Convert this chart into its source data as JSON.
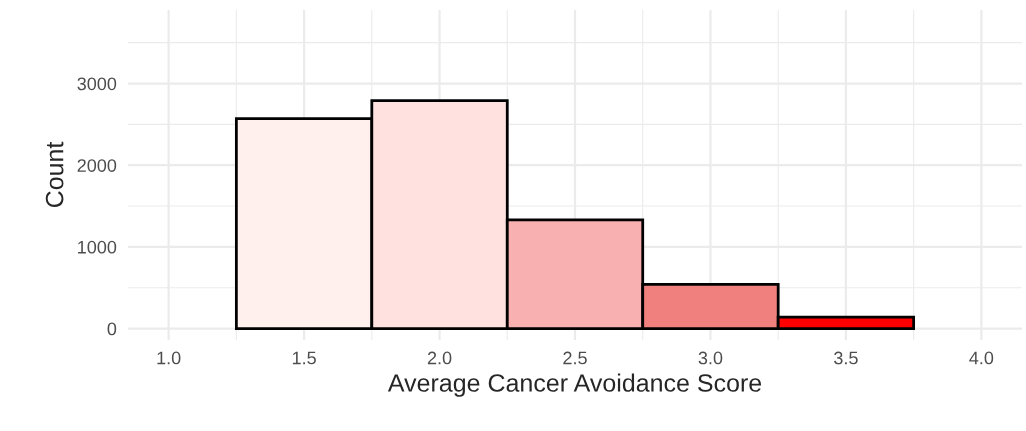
{
  "chart_data": {
    "type": "histogram",
    "xlabel": "Average Cancer Avoidance Score",
    "ylabel": "Count",
    "bins": [
      1.25,
      1.75,
      2.25,
      2.75,
      3.25,
      3.75
    ],
    "values": [
      2570,
      2790,
      1330,
      540,
      140
    ],
    "colors": [
      "#fff0ee",
      "#ffe2df",
      "#f8b1b0",
      "#ef807e",
      "#ff0000"
    ],
    "xlim": [
      0.85,
      4.15
    ],
    "xticks": [
      {
        "value": 1.0,
        "label": "1.0"
      },
      {
        "value": 1.5,
        "label": "1.5"
      },
      {
        "value": 2.0,
        "label": "2.0"
      },
      {
        "value": 2.5,
        "label": "2.5"
      },
      {
        "value": 3.0,
        "label": "3.0"
      },
      {
        "value": 3.5,
        "label": "3.5"
      },
      {
        "value": 4.0,
        "label": "4.0"
      }
    ],
    "ylim": [
      -140,
      3900
    ],
    "yticks": [
      0,
      1000,
      2000,
      3000
    ],
    "grid": true
  }
}
